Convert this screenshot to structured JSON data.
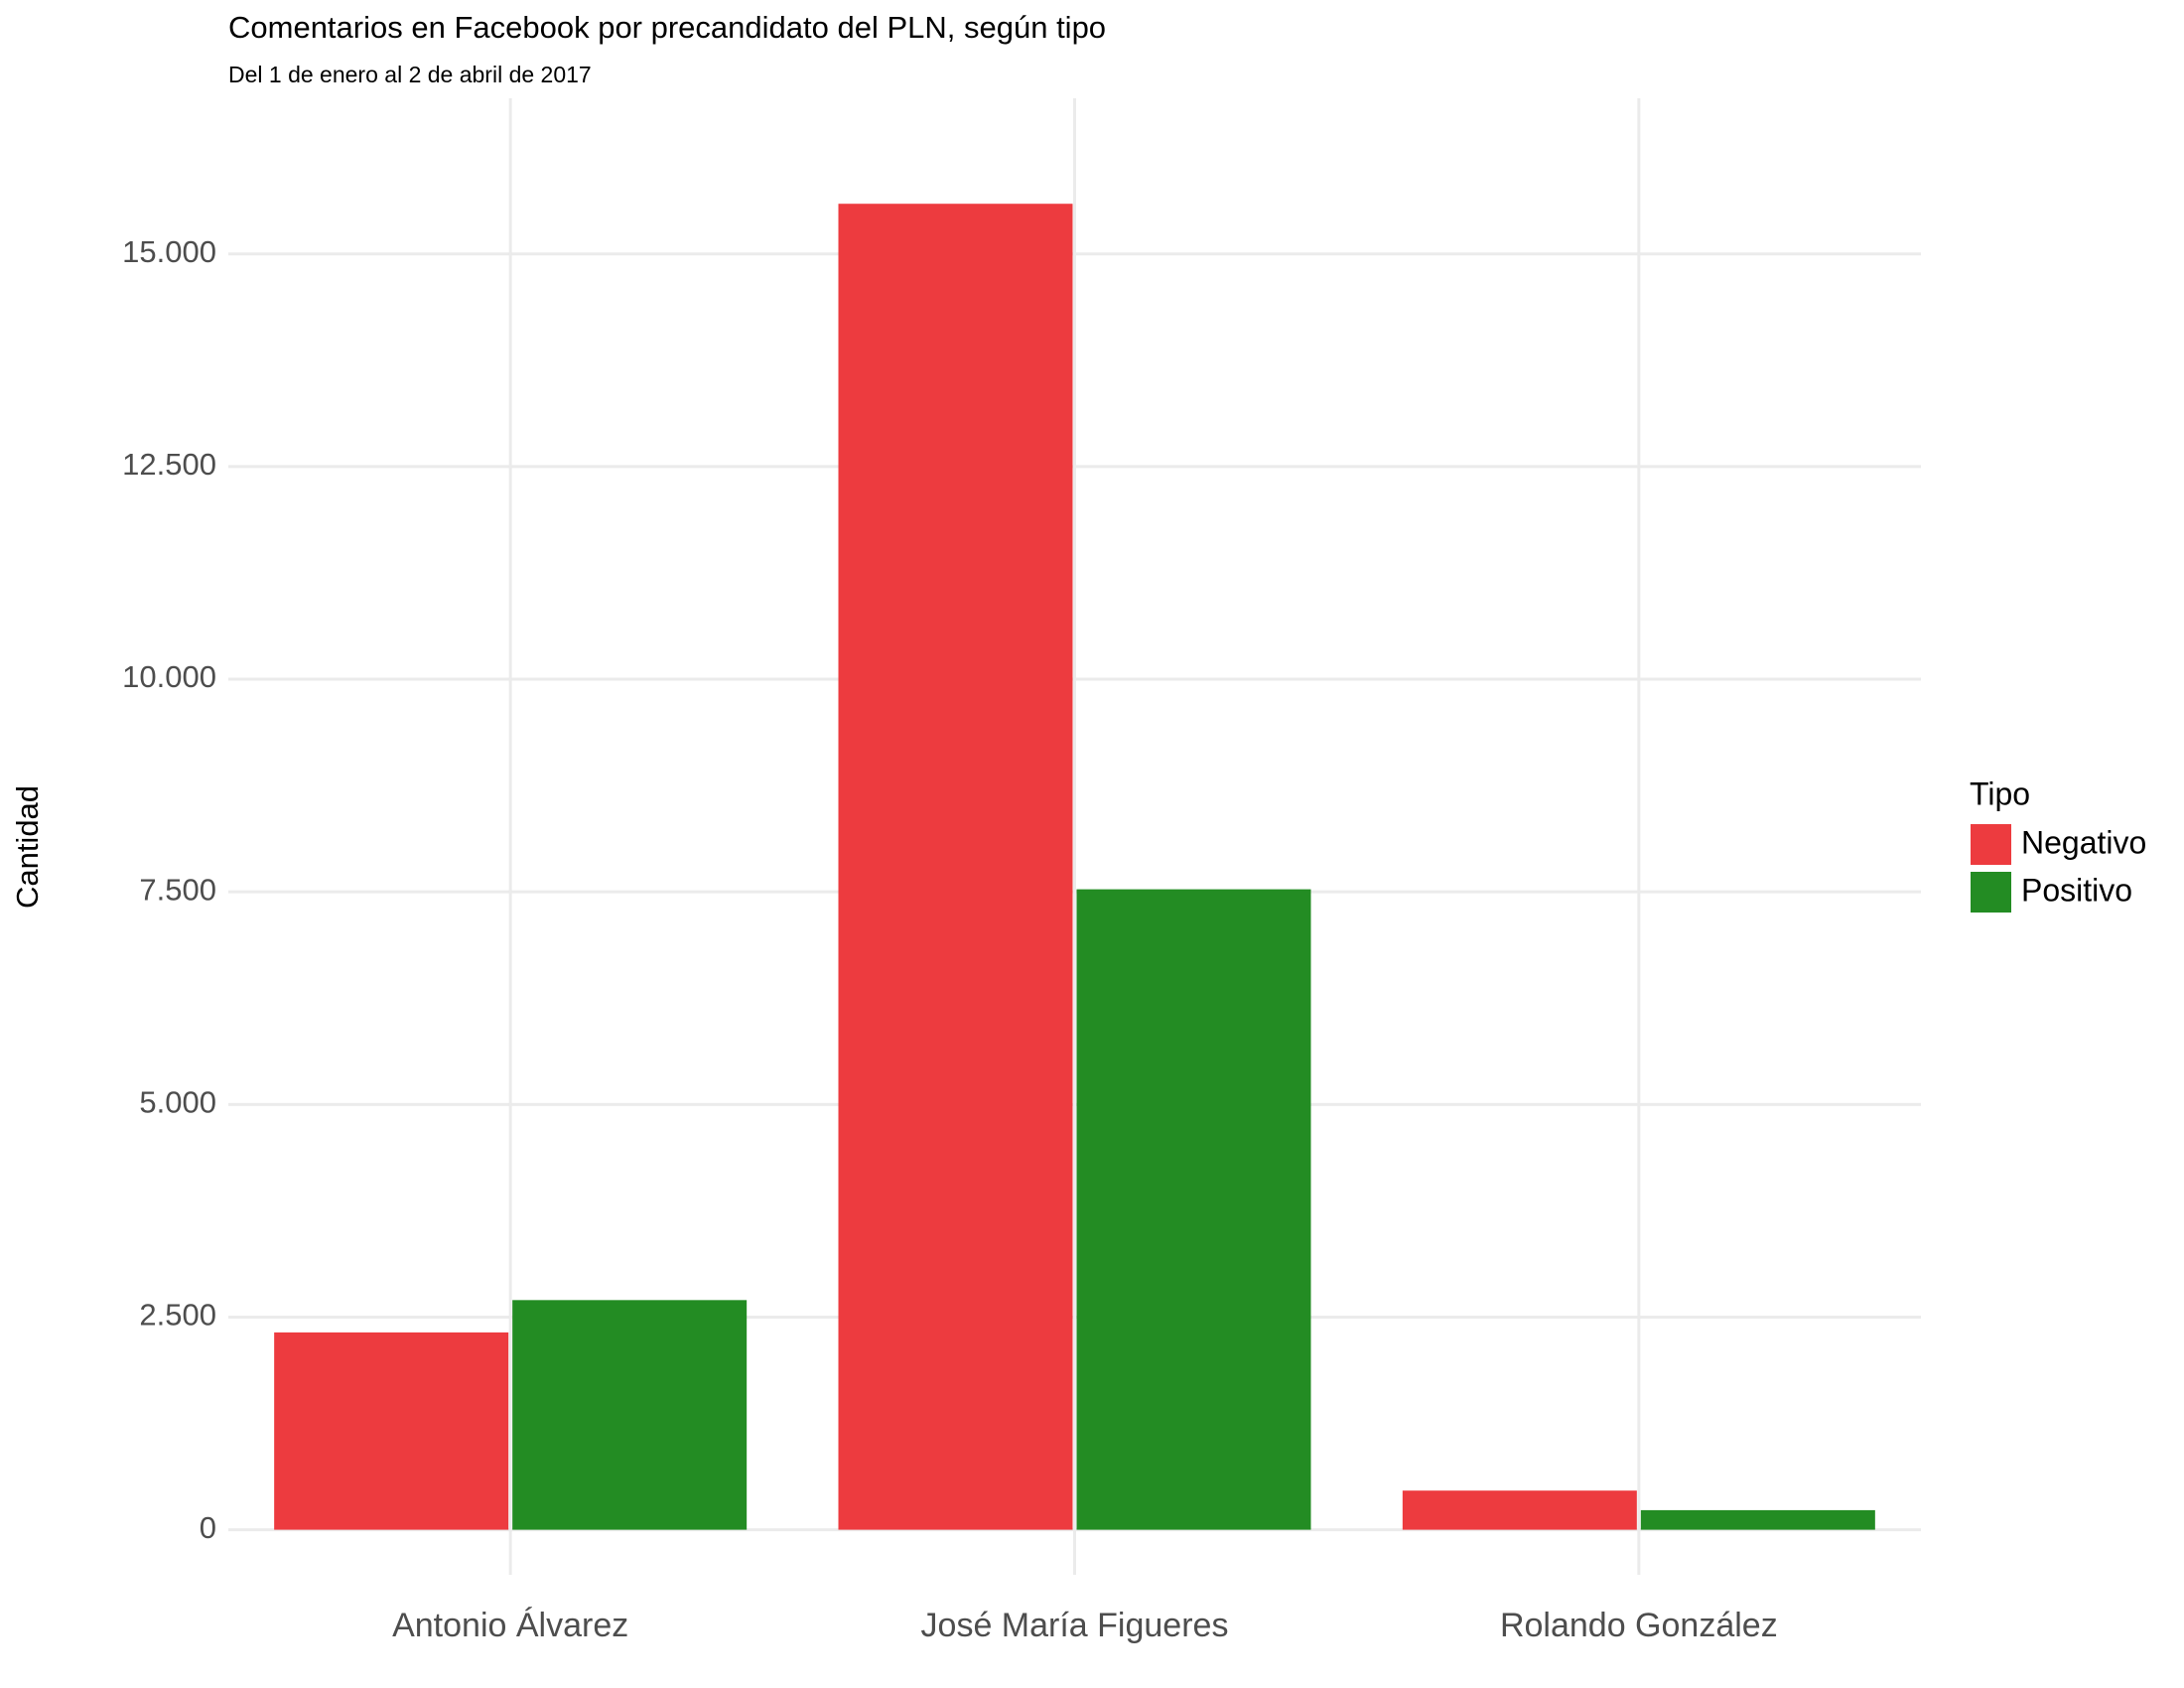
{
  "chart_data": {
    "type": "bar",
    "title": "Comentarios en Facebook por precandidato del PLN, según tipo",
    "subtitle": "Del 1 de enero al 2 de abril de 2017",
    "y_label": "Cantidad",
    "categories": [
      "Antonio Álvarez",
      "José María Figueres",
      "Rolando González"
    ],
    "series": [
      {
        "name": "Negativo",
        "color": "#ed3b3f",
        "values": [
          2320,
          15590,
          460
        ]
      },
      {
        "name": "Positivo",
        "color": "#238c23",
        "values": [
          2700,
          7530,
          230
        ]
      }
    ],
    "ylim": [
      -530,
      16830
    ],
    "yticks": [
      0,
      {
        "value": 2500,
        "label": "2.500"
      },
      {
        "value": 5000,
        "label": "5.000"
      },
      {
        "value": 7500,
        "label": "7.500"
      },
      {
        "value": 10000,
        "label": "10.000"
      },
      {
        "value": 12500,
        "label": "12.500"
      },
      {
        "value": 15000,
        "label": "15.000"
      }
    ],
    "legend_title": "Tipo",
    "legend_position": "right",
    "grid": true
  }
}
